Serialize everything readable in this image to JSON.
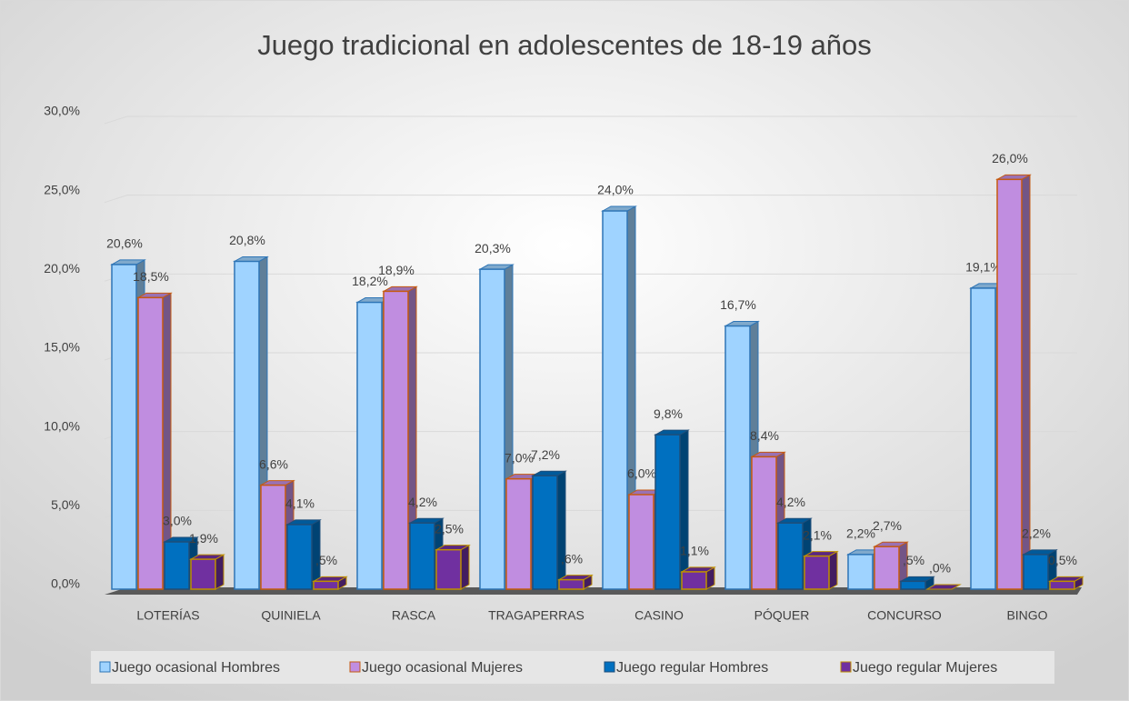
{
  "chart_data": {
    "type": "bar3d",
    "title": "Juego tradicional en adolescentes de 18-19 años",
    "categories": [
      "LOTERÍAS",
      "QUINIELA",
      "RASCA",
      "TRAGAPERRAS",
      "CASINO",
      "PÓQUER",
      "CONCURSO",
      "BINGO"
    ],
    "series": [
      {
        "name": "Juego ocasional Hombres",
        "color": "#9fd3ff",
        "border": "#2e75b6",
        "values": [
          20.6,
          20.8,
          18.2,
          20.3,
          24.0,
          16.7,
          2.2,
          19.1
        ],
        "value_labels": [
          "20,6%",
          "20,8%",
          "18,2%",
          "20,3%",
          "24,0%",
          "16,7%",
          "2,2%",
          "19,1%"
        ]
      },
      {
        "name": "Juego ocasional Mujeres",
        "color": "#c08de0",
        "border": "#c55a11",
        "values": [
          18.5,
          6.6,
          18.9,
          7.0,
          6.0,
          8.4,
          2.7,
          26.0
        ],
        "value_labels": [
          "18,5%",
          "6,6%",
          "18,9%",
          "7,0%",
          "6,0%",
          "8,4%",
          "2,7%",
          "26,0%"
        ]
      },
      {
        "name": "Juego regular Hombres",
        "color": "#0070c0",
        "border": "#1f4e79",
        "values": [
          3.0,
          4.1,
          4.2,
          7.2,
          9.8,
          4.2,
          0.5,
          2.2
        ],
        "value_labels": [
          "3,0%",
          "4,1%",
          "4,2%",
          "7,2%",
          "9,8%",
          "4,2%",
          ",5%",
          "2,2%"
        ]
      },
      {
        "name": "Juego regular Mujeres",
        "color": "#7030a0",
        "border": "#bf9000",
        "values": [
          1.9,
          0.5,
          2.5,
          0.6,
          1.1,
          2.1,
          0.0,
          0.5
        ],
        "value_labels": [
          "1,9%",
          ",5%",
          "2,5%",
          ",6%",
          "1,1%",
          "2,1%",
          ",0%",
          "0,5%"
        ]
      }
    ],
    "ylim": [
      0,
      30
    ],
    "yticks": [
      {
        "value": 0,
        "label": "0,0%"
      },
      {
        "value": 5,
        "label": "5,0%"
      },
      {
        "value": 10,
        "label": "10,0%"
      },
      {
        "value": 15,
        "label": "15,0%"
      },
      {
        "value": 20,
        "label": "20,0%"
      },
      {
        "value": 25,
        "label": "25,0%"
      },
      {
        "value": 30,
        "label": "30,0%"
      }
    ],
    "grid": true,
    "legend": "bottom"
  }
}
